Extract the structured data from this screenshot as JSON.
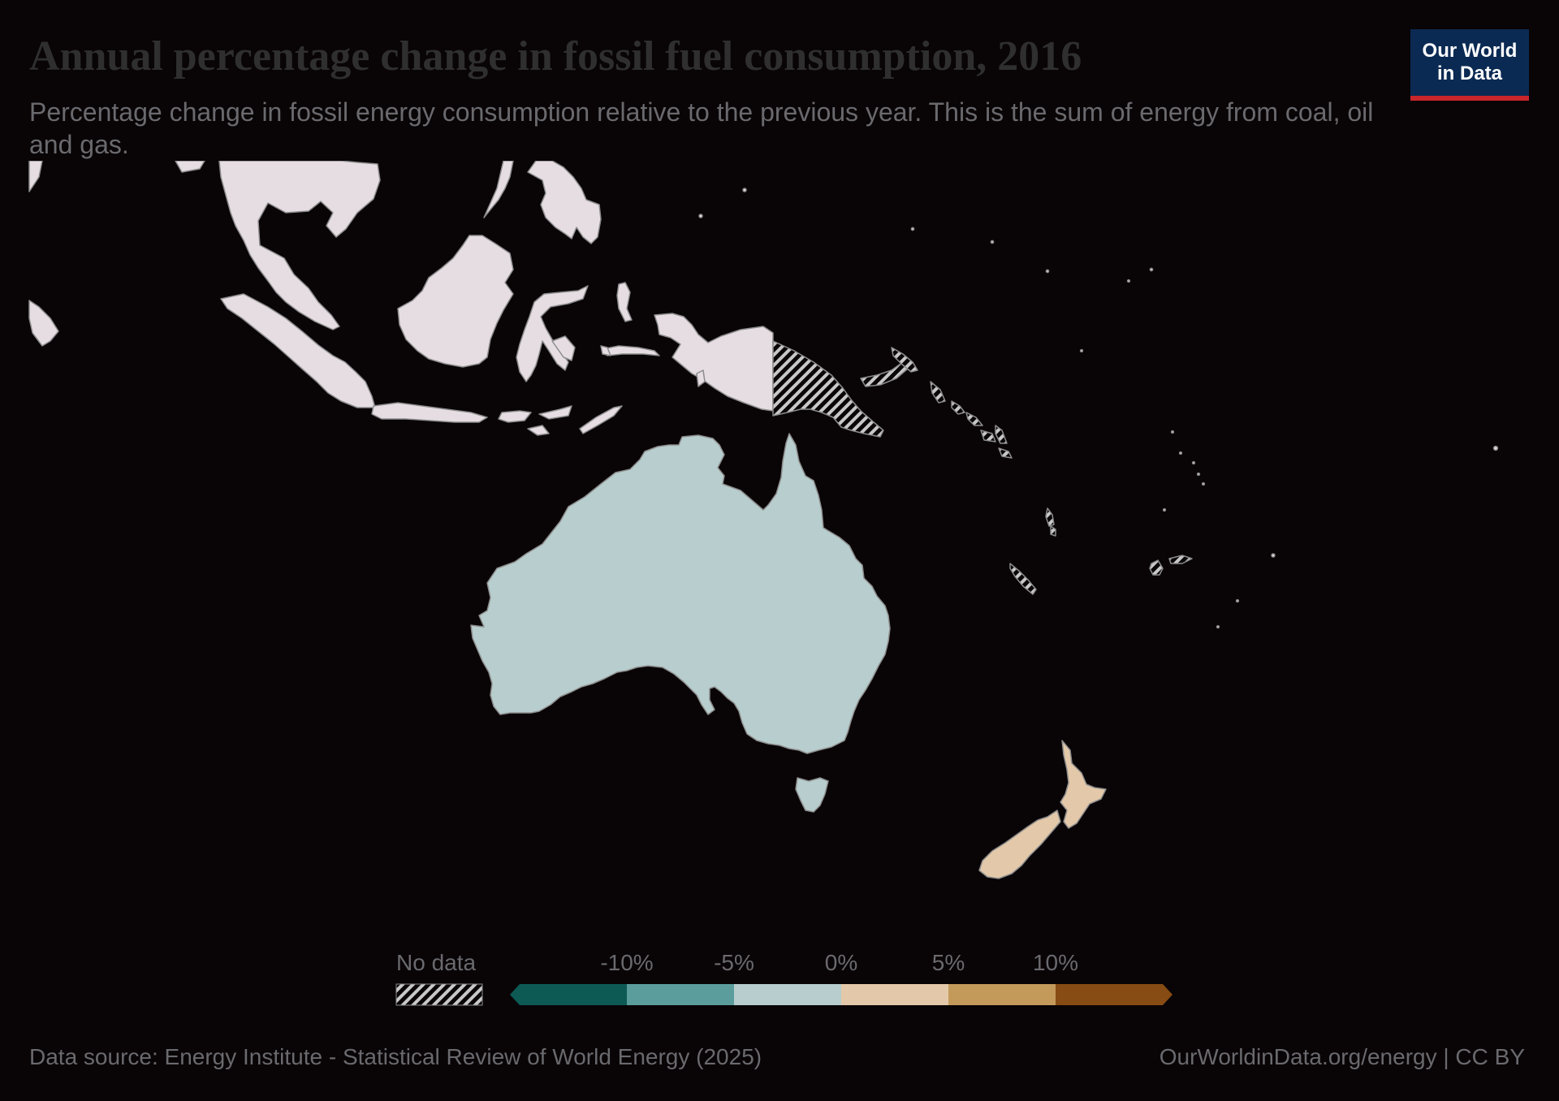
{
  "title": "Annual percentage change in fossil fuel consumption, 2016",
  "subtitle": "Percentage change in fossil energy consumption relative to the previous year. This is the sum of energy from coal, oil and gas.",
  "logo": {
    "line1": "Our World",
    "line2": "in Data"
  },
  "legend": {
    "no_data_label": "No data",
    "ticks": [
      "-10%",
      "-5%",
      "0%",
      "5%",
      "10%"
    ],
    "bins": [
      {
        "range": "below -10%",
        "color": "#0d5a55"
      },
      {
        "range": "-10% to -5%",
        "color": "#5a9d9c"
      },
      {
        "range": "-5% to 0%",
        "color": "#b8cdcd"
      },
      {
        "range": "0% to 5%",
        "color": "#e3c9a9"
      },
      {
        "range": "5% to 10%",
        "color": "#c49a5b"
      },
      {
        "range": "above 10%",
        "color": "#874c13"
      }
    ]
  },
  "regions": [
    {
      "name": "Australia",
      "bin": "-5% to 0%",
      "color": "#b8cdcd"
    },
    {
      "name": "New Zealand",
      "bin": "0% to 5%",
      "color": "#e3c9a9"
    },
    {
      "name": "Papua New Guinea",
      "bin": "No data"
    },
    {
      "name": "Solomon Islands",
      "bin": "No data"
    },
    {
      "name": "Vanuatu",
      "bin": "No data"
    },
    {
      "name": "New Caledonia",
      "bin": "No data"
    },
    {
      "name": "Fiji",
      "bin": "No data"
    },
    {
      "name": "Indonesia",
      "bin": "outside region",
      "color": "#e6dde3"
    }
  ],
  "colors": {
    "background": "#090406",
    "outside_region": "#e6dde3",
    "border": "#8c8c8c",
    "no_data_hatch": "#c8c8c8"
  },
  "footer": {
    "source": "Data source: Energy Institute - Statistical Review of World Energy (2025)",
    "credit": "OurWorldinData.org/energy | CC BY"
  }
}
